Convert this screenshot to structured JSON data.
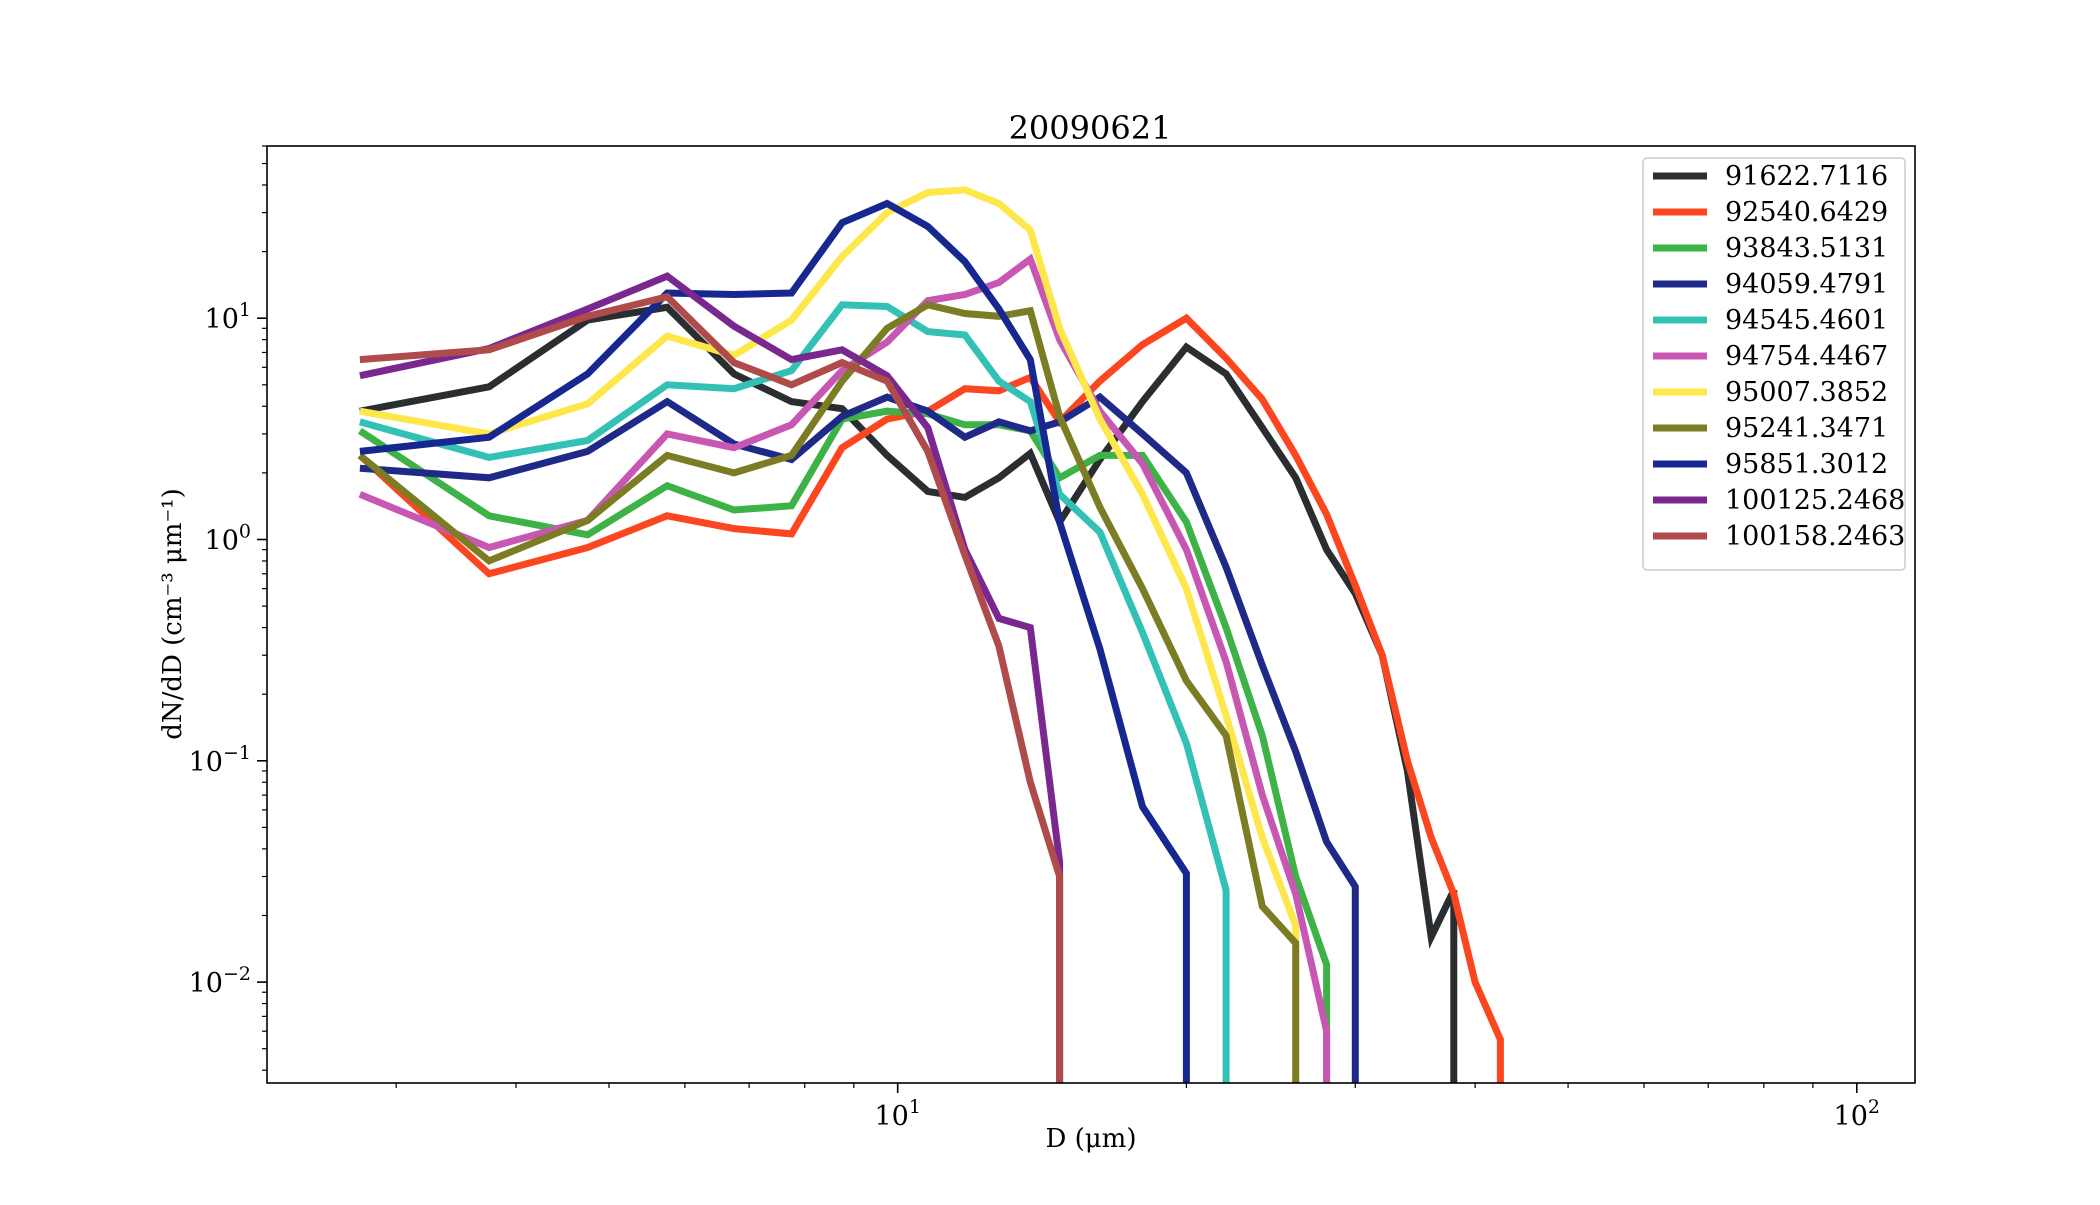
{
  "chart_data": {
    "type": "line",
    "title": "20090621",
    "xlabel": "D (μm)",
    "ylabel": "dN/dD (cm⁻³ μm⁻¹)",
    "x_scale": "log",
    "y_scale": "log",
    "xlim": [
      2.2,
      115
    ],
    "ylim": [
      0.0035,
      60
    ],
    "grid": false,
    "legend_position": "top-right",
    "x_ticks": [
      {
        "value": 10,
        "base": "10",
        "exp": "1"
      },
      {
        "value": 100,
        "base": "10",
        "exp": "2"
      }
    ],
    "y_ticks": [
      {
        "value": 0.01,
        "base": "10",
        "exp": "−2"
      },
      {
        "value": 0.1,
        "base": "10",
        "exp": "−1"
      },
      {
        "value": 1,
        "base": "10",
        "exp": "0"
      },
      {
        "value": 10,
        "base": "10",
        "exp": "1"
      }
    ],
    "x": [
      2.75,
      3.75,
      4.75,
      5.75,
      6.75,
      7.75,
      8.75,
      9.75,
      10.75,
      11.75,
      12.75,
      13.75,
      14.75,
      16.25,
      18.0,
      20.0,
      22.0,
      24.0,
      26.0,
      28.0,
      30.0,
      32.0,
      34.0,
      36.0,
      38.0,
      40.0,
      42.5
    ],
    "series": [
      {
        "name": "91622.7116",
        "color": "#2b2e31",
        "values": [
          3.8,
          4.9,
          9.8,
          11.2,
          5.6,
          4.2,
          3.9,
          2.4,
          1.65,
          1.55,
          1.9,
          2.45,
          1.2,
          2.3,
          4.2,
          7.4,
          5.6,
          3.2,
          1.9,
          0.9,
          0.57,
          0.3,
          0.09,
          0.016,
          0.026,
          null,
          null
        ]
      },
      {
        "name": "92540.6429",
        "color": "#fb4620",
        "values": [
          2.4,
          0.7,
          0.92,
          1.28,
          1.12,
          1.06,
          2.6,
          3.5,
          3.8,
          4.8,
          4.7,
          5.4,
          3.4,
          5.2,
          7.6,
          10.0,
          6.6,
          4.3,
          2.4,
          1.3,
          0.62,
          0.3,
          0.1,
          0.045,
          0.025,
          0.01,
          0.0055
        ]
      },
      {
        "name": "93843.5131",
        "color": "#3cb247",
        "values": [
          3.1,
          1.28,
          1.05,
          1.75,
          1.36,
          1.42,
          3.5,
          3.8,
          3.7,
          3.3,
          3.3,
          3.1,
          1.9,
          2.4,
          2.4,
          1.2,
          0.4,
          0.13,
          0.03,
          0.012,
          null,
          null,
          null,
          null,
          null,
          null,
          null
        ]
      },
      {
        "name": "94059.4791",
        "color": "#1f2a88",
        "values": [
          2.1,
          1.9,
          2.5,
          4.2,
          2.7,
          2.3,
          3.6,
          4.4,
          3.8,
          2.9,
          3.4,
          3.1,
          3.4,
          4.4,
          3.0,
          2.0,
          0.75,
          0.27,
          0.11,
          0.043,
          0.027,
          null,
          null,
          null,
          null,
          null,
          null
        ]
      },
      {
        "name": "94545.4601",
        "color": "#33c1b6",
        "values": [
          3.4,
          2.35,
          2.8,
          5.0,
          4.8,
          5.8,
          11.5,
          11.3,
          8.7,
          8.4,
          5.2,
          4.2,
          1.6,
          1.08,
          0.38,
          0.12,
          0.026,
          null,
          null,
          null,
          null,
          null,
          null,
          null,
          null,
          null,
          null
        ]
      },
      {
        "name": "94754.4467",
        "color": "#c857b4",
        "values": [
          1.6,
          0.92,
          1.22,
          3.0,
          2.6,
          3.3,
          5.8,
          7.8,
          12.0,
          12.8,
          14.5,
          18.5,
          8.0,
          3.8,
          2.2,
          0.9,
          0.28,
          0.07,
          0.025,
          0.006,
          null,
          null,
          null,
          null,
          null,
          null,
          null
        ]
      },
      {
        "name": "95007.3852",
        "color": "#fde74a",
        "values": [
          3.8,
          3.0,
          4.1,
          8.3,
          6.8,
          9.8,
          19.0,
          30.0,
          37.0,
          38.0,
          33.0,
          25.0,
          9.0,
          3.5,
          1.6,
          0.6,
          0.16,
          0.045,
          0.018,
          null,
          null,
          null,
          null,
          null,
          null,
          null,
          null
        ]
      },
      {
        "name": "95241.3471",
        "color": "#7c7c25",
        "values": [
          2.4,
          0.8,
          1.22,
          2.4,
          2.0,
          2.4,
          5.2,
          9.0,
          11.5,
          10.5,
          10.2,
          10.8,
          3.6,
          1.4,
          0.6,
          0.23,
          0.13,
          0.022,
          0.015,
          null,
          null,
          null,
          null,
          null,
          null,
          null,
          null
        ]
      },
      {
        "name": "95851.3012",
        "color": "#16288f",
        "values": [
          2.5,
          2.9,
          5.6,
          13.0,
          12.8,
          13.0,
          27.0,
          33.0,
          26.0,
          18.0,
          11.0,
          6.5,
          1.2,
          0.32,
          0.062,
          0.031,
          null,
          null,
          null,
          null,
          null,
          null,
          null,
          null,
          null,
          null,
          null
        ]
      },
      {
        "name": "100125.2468",
        "color": "#7a2890",
        "values": [
          5.5,
          7.3,
          11.0,
          15.5,
          9.2,
          6.5,
          7.2,
          5.5,
          3.2,
          0.9,
          0.44,
          0.4,
          0.035,
          null,
          null,
          null,
          null,
          null,
          null,
          null,
          null,
          null,
          null,
          null,
          null,
          null,
          null
        ]
      },
      {
        "name": "100158.2463",
        "color": "#b04b4b",
        "values": [
          6.5,
          7.2,
          10.2,
          12.5,
          6.3,
          5.0,
          6.3,
          5.2,
          2.5,
          0.85,
          0.33,
          0.08,
          0.03,
          null,
          null,
          null,
          null,
          null,
          null,
          null,
          null,
          null,
          null,
          null,
          null,
          null,
          null
        ]
      }
    ]
  }
}
